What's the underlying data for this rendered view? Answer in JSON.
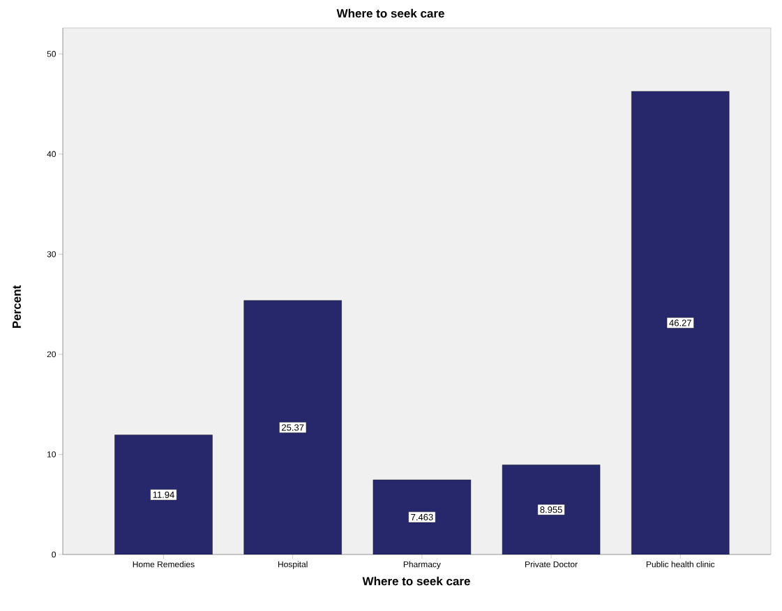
{
  "chart_data": {
    "type": "bar",
    "title": "Where to seek care",
    "xlabel": "Where to seek care",
    "ylabel": "Percent",
    "categories": [
      "Home Remedies",
      "Hospital",
      "Pharmacy",
      "Private Doctor",
      "Public health clinic"
    ],
    "values": [
      11.94,
      25.37,
      7.463,
      8.955,
      46.27
    ],
    "color": "#27286b",
    "data_labels": true,
    "ylim": [
      0,
      52.6
    ],
    "yticks": [
      0,
      10,
      20,
      30,
      40,
      50
    ],
    "grid": false
  }
}
